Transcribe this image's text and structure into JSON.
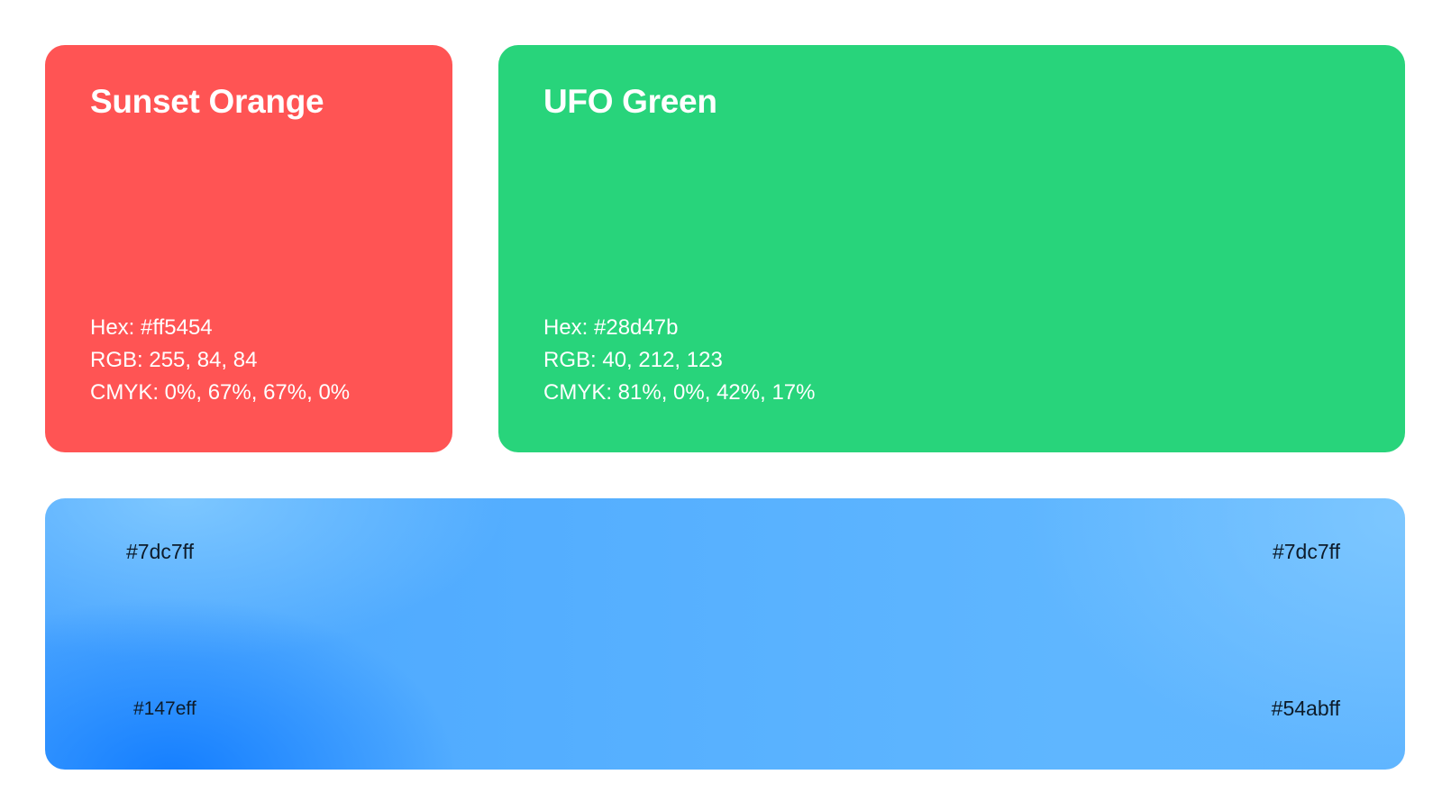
{
  "swatches": {
    "orange": {
      "name": "Sunset Orange",
      "hex": "Hex: #ff5454",
      "rgb": "RGB: 255, 84, 84",
      "cmyk": "CMYK: 0%, 67%, 67%, 0%",
      "color": "#ff5454"
    },
    "green": {
      "name": "UFO Green",
      "hex": "Hex: #28d47b",
      "rgb": "RGB: 40, 212, 123",
      "cmyk": "CMYK: 81%, 0%, 42%, 17%",
      "color": "#28d47b"
    }
  },
  "gradient": {
    "top_left": "#7dc7ff",
    "top_right": "#7dc7ff",
    "bottom_left": "#147eff",
    "bottom_right": "#54abff"
  }
}
